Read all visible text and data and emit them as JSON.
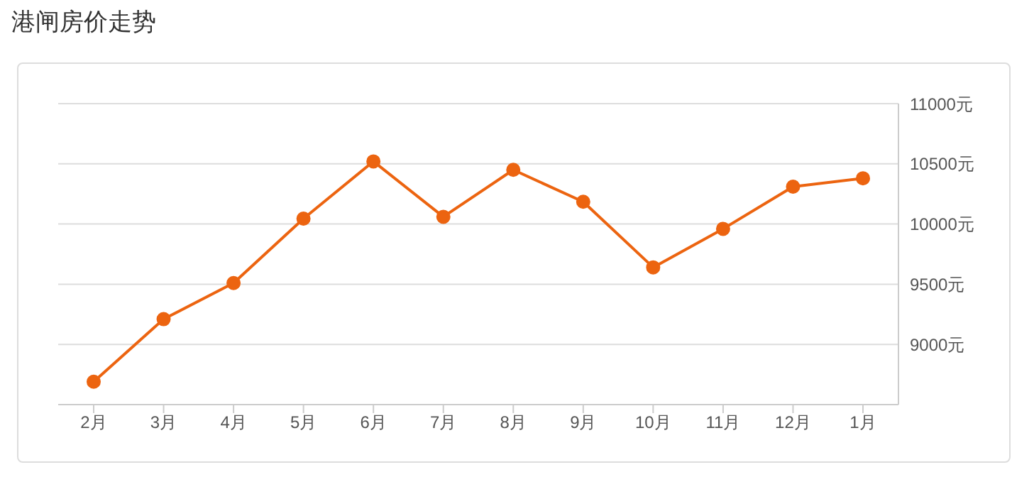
{
  "chart_data": {
    "type": "line",
    "title": "港闸房价走势",
    "categories": [
      "2月",
      "3月",
      "4月",
      "5月",
      "6月",
      "7月",
      "8月",
      "9月",
      "10月",
      "11月",
      "12月",
      "1月"
    ],
    "series": [
      {
        "color": "#ec6410",
        "values": [
          8690,
          9210,
          9510,
          10045,
          10520,
          10060,
          10450,
          10185,
          9640,
          9960,
          10310,
          10380
        ]
      }
    ],
    "ylim": [
      8500,
      11000
    ],
    "yticks": [
      {
        "value": 9000,
        "label": "9000元"
      },
      {
        "value": 9500,
        "label": "9500元"
      },
      {
        "value": 10000,
        "label": "10000元"
      },
      {
        "value": 10500,
        "label": "10500元"
      },
      {
        "value": 11000,
        "label": "11000元"
      }
    ],
    "grid": "y",
    "legend": false,
    "marker": "circle",
    "line_style": "solid"
  }
}
